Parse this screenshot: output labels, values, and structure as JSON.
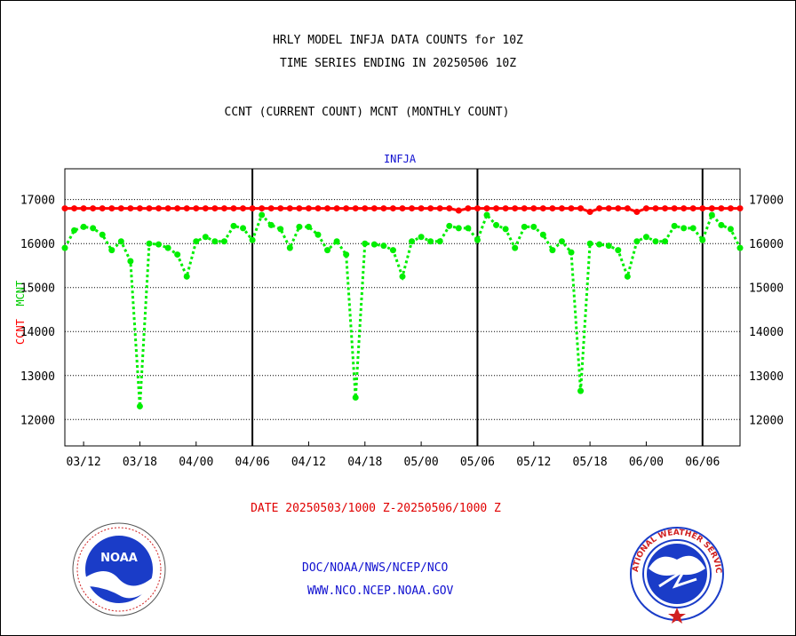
{
  "header": {
    "title_line1": "HRLY MODEL INFJA DATA COUNTS for 10Z",
    "title_line2": "TIME SERIES ENDING IN 20250506 10Z",
    "subtitle": "CCNT (CURRENT COUNT) MCNT (MONTHLY COUNT)"
  },
  "footer": {
    "date_range": "DATE 20250503/1000 Z-20250506/1000 Z",
    "credit_line1": "DOC/NOAA/NWS/NCEP/NCO",
    "credit_line2": "WWW.NCO.NCEP.NOAA.GOV",
    "noaa_logo_text": "NOAA",
    "nws_logo_text": "NATIONAL WEATHER SERVICE"
  },
  "colors": {
    "ccnt": "#ff0000",
    "mcnt": "#00ee00",
    "ylabel_ccnt": "#ff0000",
    "ylabel_mcnt": "#00cc00",
    "series_name": "#1010d0"
  },
  "chart_data": {
    "type": "line",
    "title": "INFJA",
    "ylabel_parts": [
      "CCNT",
      "MCNT"
    ],
    "ylim": [
      11400,
      17700
    ],
    "yticks": [
      12000,
      13000,
      14000,
      15000,
      16000,
      17000
    ],
    "ytick_labels": [
      "12000",
      "13000",
      "14000",
      "15000",
      "16000",
      "17000"
    ],
    "xtick_labels": [
      "03/12",
      "03/18",
      "04/00",
      "04/06",
      "04/12",
      "04/18",
      "05/00",
      "05/06",
      "05/12",
      "05/18",
      "06/00",
      "06/06"
    ],
    "xtick_hours": [
      2,
      8,
      14,
      20,
      26,
      32,
      38,
      44,
      50,
      56,
      62,
      68
    ],
    "day_boundaries_hours": [
      20,
      44,
      68
    ],
    "grid": true,
    "x_hours": [
      0,
      1,
      2,
      3,
      4,
      5,
      6,
      7,
      8,
      9,
      10,
      11,
      12,
      13,
      14,
      15,
      16,
      17,
      18,
      19,
      20,
      21,
      22,
      23,
      24,
      25,
      26,
      27,
      28,
      29,
      30,
      31,
      32,
      33,
      34,
      35,
      36,
      37,
      38,
      39,
      40,
      41,
      42,
      43,
      44,
      45,
      46,
      47,
      48,
      49,
      50,
      51,
      52,
      53,
      54,
      55,
      56,
      57,
      58,
      59,
      60,
      61,
      62,
      63,
      64,
      65,
      66,
      67,
      68,
      69,
      70,
      71,
      72
    ],
    "series": [
      {
        "name": "CCNT",
        "values": [
          16800,
          16800,
          16800,
          16800,
          16800,
          16800,
          16800,
          16800,
          16800,
          16800,
          16800,
          16800,
          16800,
          16800,
          16800,
          16800,
          16800,
          16800,
          16800,
          16800,
          16800,
          16800,
          16800,
          16800,
          16800,
          16800,
          16800,
          16800,
          16800,
          16800,
          16800,
          16800,
          16800,
          16800,
          16800,
          16800,
          16800,
          16800,
          16800,
          16800,
          16800,
          16800,
          16750,
          16800,
          16800,
          16800,
          16800,
          16800,
          16800,
          16800,
          16800,
          16800,
          16800,
          16800,
          16800,
          16800,
          16720,
          16800,
          16800,
          16800,
          16800,
          16720,
          16800,
          16800,
          16800,
          16800,
          16800,
          16800,
          16800,
          16800,
          16800,
          16800,
          16800
        ]
      },
      {
        "name": "MCNT",
        "values": [
          15900,
          16300,
          16380,
          16350,
          16200,
          15850,
          16050,
          15600,
          12300,
          16000,
          15980,
          15900,
          15750,
          15250,
          16050,
          16150,
          16050,
          16050,
          16400,
          16350,
          16080,
          16650,
          16420,
          16330,
          15900,
          16380,
          16380,
          16200,
          15850,
          16050,
          15750,
          12500,
          16000,
          15980,
          15950,
          15850,
          15250,
          16050,
          16150,
          16050,
          16050,
          16400,
          16350,
          16350,
          16080,
          16650,
          16420,
          16330,
          15900,
          16380,
          16380,
          16200,
          15850,
          16050,
          15800,
          12650,
          16000,
          15980,
          15950,
          15850,
          15250,
          16050,
          16150,
          16050,
          16050,
          16400,
          16350,
          16350,
          16080,
          16650,
          16420,
          16330,
          15900
        ]
      }
    ]
  }
}
